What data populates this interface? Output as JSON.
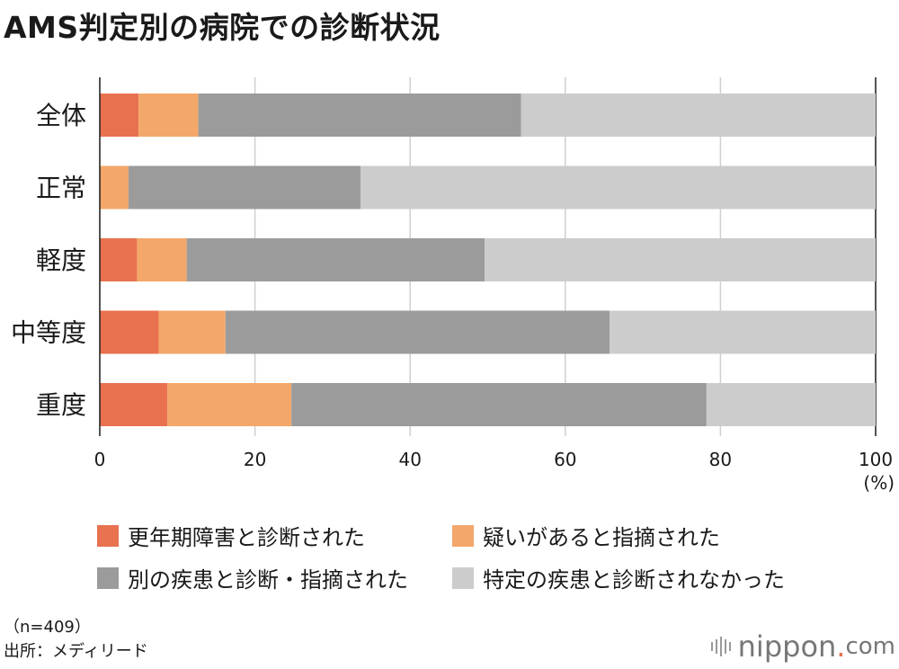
{
  "title": "AMS判定別の病院での診断状況",
  "chart_data": {
    "type": "bar",
    "orientation": "horizontal",
    "stacked": true,
    "title": "AMS判定別の病院での診断状況",
    "categories": [
      "全体",
      "正常",
      "軽度",
      "中等度",
      "重度"
    ],
    "series": [
      {
        "name": "更年期障害と診断された",
        "color": "#e8724f",
        "values": [
          5.0,
          0.0,
          4.8,
          7.6,
          8.7
        ]
      },
      {
        "name": "疑いがあると指摘された",
        "color": "#f3a76a",
        "values": [
          7.7,
          3.7,
          6.4,
          8.6,
          16.0
        ]
      },
      {
        "name": "別の疾患と診断・指摘された",
        "color": "#9b9b9b",
        "values": [
          41.6,
          29.9,
          38.4,
          49.5,
          53.5
        ]
      },
      {
        "name": "特定の疾患と診断されなかった",
        "color": "#cccccc",
        "values": [
          45.7,
          66.4,
          50.4,
          34.3,
          21.8
        ]
      }
    ],
    "xlim": [
      0,
      100
    ],
    "xticks": [
      "0",
      "20",
      "40",
      "60",
      "80",
      "100"
    ],
    "xunit": "(%)",
    "grid": true,
    "legend": "bottom"
  },
  "footnote": {
    "sample": "（n=409）",
    "source": "出所：メディリード"
  },
  "brand": {
    "name": "nippon",
    "dot": ".",
    "domain": "com"
  }
}
